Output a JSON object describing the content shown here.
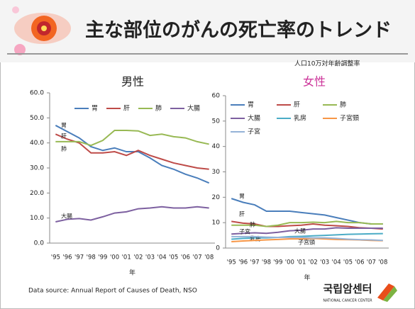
{
  "header": {
    "title": "主な部位のがんの死亡率のトレンド",
    "subtitle": "人口10万対年齢調整率"
  },
  "chart_data": [
    {
      "type": "line",
      "title": "男性",
      "title_color": "#222222",
      "x_label": "年",
      "categories": [
        "'95",
        "'96",
        "'97",
        "'98",
        "'99",
        "'00",
        "'01",
        "'02",
        "'03",
        "'04",
        "'05",
        "'06",
        "'07",
        "'08"
      ],
      "ylim": [
        0,
        60
      ],
      "yticks": [
        {
          "value": 0,
          "label": "0.0"
        },
        {
          "value": 10,
          "label": "10.0"
        },
        {
          "value": 20,
          "label": "20.0"
        },
        {
          "value": 30,
          "label": "30.0"
        },
        {
          "value": 40,
          "label": "40.0"
        },
        {
          "value": 50,
          "label": "50.0"
        },
        {
          "value": 60,
          "label": "60.0"
        }
      ],
      "series": [
        {
          "name": "胃",
          "color": "#4a7ebb",
          "values": [
            47,
            44.5,
            42,
            38.5,
            37,
            38,
            36.5,
            36.5,
            34,
            31,
            29.5,
            27.5,
            26,
            24
          ]
        },
        {
          "name": "肝",
          "color": "#be4b48",
          "values": [
            43.5,
            41.5,
            40,
            36,
            36,
            36.5,
            35,
            37,
            35,
            33.5,
            32,
            31,
            30,
            29.5
          ]
        },
        {
          "name": "肺",
          "color": "#98b954",
          "values": [
            40.5,
            40.5,
            40.5,
            39,
            41,
            45,
            45,
            44.8,
            43,
            43.5,
            42.5,
            42,
            40.5,
            39.5
          ]
        },
        {
          "name": "大腸",
          "color": "#7d60a0",
          "values": [
            8.5,
            9.5,
            9.8,
            9.2,
            10.5,
            12,
            12.5,
            13.7,
            14,
            14.5,
            14,
            14,
            14.5,
            14
          ]
        }
      ]
    },
    {
      "type": "line",
      "title": "女性",
      "title_color": "#cc3399",
      "x_label": "年",
      "categories": [
        "'95",
        "'96",
        "'97",
        "'98",
        "'99",
        "'00",
        "'01",
        "'02",
        "'03",
        "'04",
        "'05",
        "'06",
        "'07",
        "'08"
      ],
      "ylim": [
        0,
        60
      ],
      "yticks": [
        0,
        10,
        20,
        30,
        40,
        50,
        60
      ],
      "series": [
        {
          "name": "胃",
          "color": "#4a7ebb",
          "values": [
            19.5,
            18,
            17,
            14.5,
            14.5,
            14.5,
            14,
            13.5,
            13,
            12,
            11,
            10,
            9.5,
            9.5
          ]
        },
        {
          "name": "肝",
          "color": "#be4b48",
          "values": [
            10.5,
            9.8,
            9.5,
            8.5,
            8.5,
            8.8,
            9,
            9.5,
            9,
            8.8,
            8.5,
            8,
            7.8,
            7.5
          ]
        },
        {
          "name": "肺",
          "color": "#98b954",
          "values": [
            9,
            9,
            9,
            8.5,
            9,
            10,
            10,
            10.2,
            10,
            10.5,
            10,
            10,
            9.5,
            9.5
          ]
        },
        {
          "name": "大腸",
          "color": "#7d60a0",
          "values": [
            5.5,
            5.8,
            6,
            5.8,
            6.2,
            6.8,
            7,
            7.5,
            7.5,
            8,
            7.8,
            7.8,
            7.8,
            7.8
          ]
        },
        {
          "name": "乳房",
          "color": "#4bacc6",
          "values": [
            3.5,
            3.8,
            4,
            4,
            4.2,
            4.5,
            4.6,
            4.8,
            5,
            5.2,
            5.4,
            5.5,
            5.6,
            5.7
          ]
        },
        {
          "name": "子宮頸",
          "color": "#f79646",
          "values": [
            2.5,
            2.8,
            3,
            3.2,
            3.4,
            3.6,
            3.6,
            3.8,
            3.6,
            3.4,
            3.3,
            3.2,
            3,
            2.9
          ]
        },
        {
          "name": "子宮",
          "color": "#95b3d7",
          "values": [
            4.5,
            4.5,
            4.5,
            4.3,
            4.2,
            4.2,
            4.2,
            4,
            4,
            3.8,
            3.5,
            3.3,
            3.2,
            3
          ]
        }
      ]
    }
  ],
  "footer": {
    "source": "Data source: Annual Report of Causes of Death, NSO",
    "logo": "국립암센터",
    "logo_sub": "NATIONAL CANCER CENTER"
  }
}
